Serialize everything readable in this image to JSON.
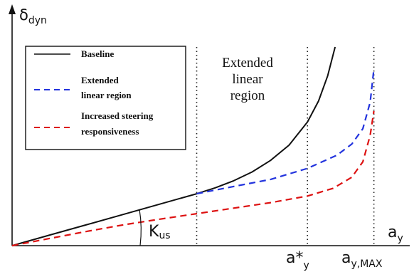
{
  "chart_data": {
    "type": "line",
    "ylabel": {
      "main": "δ",
      "sub": "dyn"
    },
    "xlabel": {
      "main": "a",
      "sub": "y"
    },
    "angle_label": {
      "main": "K",
      "sub": "us"
    },
    "annotation": [
      "Extended",
      "linear",
      "region"
    ],
    "vlines": [
      {
        "x": 0.5
      },
      {
        "x": 0.8,
        "label": {
          "main": "a*",
          "sub": "y"
        }
      },
      {
        "x": 0.98,
        "label": {
          "main": "a",
          "sub": "y,MAX"
        }
      }
    ],
    "xlim": [
      0,
      1.04
    ],
    "ylim": [
      0,
      1.0
    ],
    "series": [
      {
        "name": "Baseline",
        "color": "#111111",
        "dash": "solid",
        "x": [
          0,
          0.1,
          0.2,
          0.3,
          0.4,
          0.5,
          0.55,
          0.6,
          0.65,
          0.7,
          0.75,
          0.8,
          0.83,
          0.855,
          0.875
        ],
        "y": [
          0,
          0.047,
          0.094,
          0.141,
          0.188,
          0.235,
          0.262,
          0.294,
          0.334,
          0.386,
          0.455,
          0.56,
          0.655,
          0.77,
          0.9
        ]
      },
      {
        "name": "Extended linear region",
        "color": "#2233dd",
        "dash": "dashed",
        "x": [
          0.5,
          0.6,
          0.7,
          0.8,
          0.88,
          0.92,
          0.95,
          0.97,
          0.98
        ],
        "y": [
          0.235,
          0.268,
          0.3,
          0.35,
          0.41,
          0.46,
          0.53,
          0.65,
          0.8
        ]
      },
      {
        "name": "Increased steering responsiveness",
        "color": "#dd1111",
        "dash": "dashed",
        "x": [
          0,
          0.1,
          0.2,
          0.3,
          0.4,
          0.5,
          0.6,
          0.7,
          0.8,
          0.87,
          0.92,
          0.95,
          0.97,
          0.98
        ],
        "y": [
          0,
          0.032,
          0.064,
          0.094,
          0.12,
          0.145,
          0.17,
          0.195,
          0.225,
          0.26,
          0.31,
          0.38,
          0.5,
          0.61
        ]
      }
    ],
    "legend": {
      "position": "top-left",
      "boxed": true
    }
  }
}
